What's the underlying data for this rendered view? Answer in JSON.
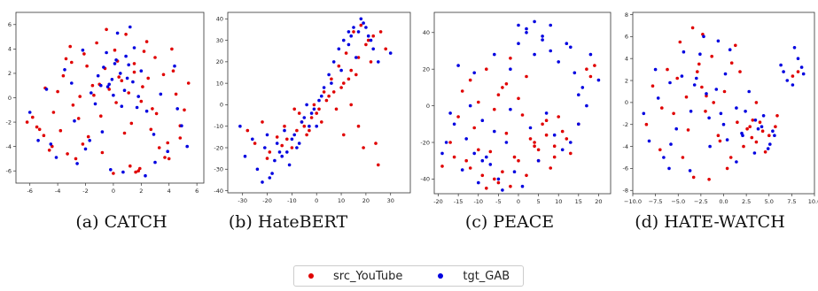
{
  "captions": [
    "(a) CATCH",
    "(b) HateBERT",
    "(c) PEACE",
    "(d) HATE-WATCH"
  ],
  "legend": [
    {
      "name": "src_YouTube",
      "color": "#e00000"
    },
    {
      "name": "tgt_GAB",
      "color": "#0000e0"
    }
  ],
  "chart_data": [
    {
      "type": "scatter",
      "title": "CATCH",
      "xlim": [
        -7,
        6.5
      ],
      "ylim": [
        -7,
        7
      ],
      "xticks": [
        -6,
        -4,
        -2,
        0,
        2,
        4,
        6
      ],
      "yticks": [
        -6,
        -4,
        -2,
        0,
        2,
        4,
        6
      ],
      "series": [
        {
          "name": "src_YouTube",
          "color": "#e00000",
          "x": [
            -6.2,
            -5.8,
            -5.5,
            -5.0,
            -4.6,
            -4.3,
            -4.0,
            -3.6,
            -3.3,
            -3.0,
            -2.7,
            -2.4,
            -2.1,
            -1.8,
            -1.5,
            -1.2,
            -0.9,
            -0.6,
            -0.3,
            0.0,
            0.3,
            0.6,
            0.9,
            1.2,
            1.5,
            1.8,
            2.1,
            2.4,
            2.7,
            3.0,
            3.3,
            3.6,
            3.9,
            4.2,
            4.5,
            4.8,
            5.1,
            5.4,
            -3.8,
            -2.9,
            -1.9,
            -0.8,
            0.4,
            1.3,
            2.2,
            3.1,
            4.0,
            -4.9,
            -3.4,
            -2.2,
            -1.0,
            0.2,
            1.5,
            2.8,
            4.3,
            1.6,
            1.9,
            -0.5,
            0.8,
            -2.5,
            2.5,
            3.7,
            -3.1,
            -1.4,
            0.1,
            1.1,
            2.0,
            -4.4,
            4.8,
            -5.3
          ],
          "y": [
            -2.0,
            -1.6,
            -2.4,
            -3.1,
            -4.3,
            -1.2,
            0.5,
            1.8,
            -4.6,
            2.9,
            -5.0,
            0.1,
            3.6,
            -3.2,
            1.0,
            4.5,
            -1.5,
            2.4,
            0.7,
            -6.2,
            3.0,
            1.4,
            5.2,
            -5.6,
            2.1,
            -6.0,
            0.9,
            4.6,
            -2.6,
            3.3,
            -4.1,
            1.9,
            -3.7,
            4.0,
            0.3,
            -3.3,
            -1.0,
            1.2,
            -2.7,
            -0.6,
            2.6,
            -4.5,
            1.7,
            -2.1,
            3.8,
            -1.3,
            -5.0,
            0.8,
            3.2,
            -3.8,
            1.1,
            -0.4,
            2.8,
            -0.9,
            2.2,
            -6.1,
            -5.8,
            5.6,
            -2.9,
            -1.7,
            1.6,
            -4.9,
            4.2,
            0.2,
            3.9,
            0.4,
            -0.3,
            -4.0,
            -2.3,
            -2.6
          ]
        },
        {
          "name": "tgt_GAB",
          "color": "#0000e0",
          "x": [
            -6.0,
            -5.4,
            -4.8,
            -4.1,
            -3.5,
            -2.8,
            -2.2,
            -1.6,
            -1.1,
            -0.7,
            -0.4,
            -0.1,
            0.2,
            0.5,
            0.8,
            1.1,
            1.4,
            1.7,
            2.0,
            2.4,
            2.9,
            3.4,
            3.9,
            4.4,
            4.9,
            5.3,
            -1.3,
            -0.9,
            -0.5,
            0.0,
            0.6,
            1.0,
            1.5,
            -0.2,
            0.3,
            0.7,
            -0.8,
            1.2,
            -2.0,
            2.3,
            -3.0,
            3.0,
            -4.5,
            4.6,
            0.1,
            -0.3,
            0.9,
            1.8,
            -1.7,
            -2.6
          ],
          "y": [
            -1.2,
            -3.5,
            0.7,
            -4.9,
            2.3,
            -1.9,
            3.9,
            0.4,
            1.8,
            2.5,
            0.9,
            1.5,
            3.1,
            2.0,
            0.6,
            2.7,
            1.3,
            -0.8,
            2.2,
            -1.1,
            -3.0,
            0.3,
            -4.4,
            2.6,
            -2.3,
            -4.0,
            -0.5,
            1.0,
            3.7,
            0.2,
            -0.7,
            1.6,
            4.1,
            -5.9,
            5.3,
            -6.1,
            -2.8,
            5.8,
            -4.2,
            -6.4,
            1.2,
            -5.3,
            -3.8,
            -0.9,
            2.8,
            1.1,
            3.4,
            0.1,
            -3.5,
            -5.4
          ]
        }
      ]
    },
    {
      "type": "scatter",
      "title": "HateBERT",
      "xlim": [
        -36,
        38
      ],
      "ylim": [
        -41,
        43
      ],
      "xticks": [
        -30,
        -20,
        -10,
        0,
        10,
        20,
        30
      ],
      "yticks": [
        -40,
        -30,
        -20,
        -10,
        0,
        10,
        20,
        30,
        40
      ],
      "series": [
        {
          "name": "src_YouTube",
          "color": "#e00000",
          "x": [
            -28,
            -25,
            -22,
            -19,
            -16,
            -13,
            -10,
            -7,
            -4,
            -1,
            2,
            5,
            8,
            11,
            14,
            17,
            20,
            23,
            26,
            -20,
            -14,
            -8,
            -2,
            4,
            10,
            16,
            22,
            28,
            -12,
            -5,
            1,
            7,
            13,
            19,
            25,
            15,
            18,
            21,
            12,
            9,
            6,
            3,
            0,
            -3,
            -6,
            -9,
            17,
            24,
            14,
            11
          ],
          "y": [
            -12,
            -18,
            -8,
            -22,
            -15,
            -10,
            -20,
            -4,
            -14,
            0,
            -8,
            4,
            -2,
            10,
            16,
            22,
            28,
            32,
            34,
            -25,
            -19,
            -12,
            -6,
            2,
            8,
            14,
            20,
            26,
            -16,
            -10,
            -2,
            6,
            12,
            -20,
            -28,
            34,
            37,
            30,
            24,
            18,
            12,
            6,
            -4,
            -12,
            -8,
            -2,
            -10,
            -18,
            0,
            -14
          ]
        },
        {
          "name": "tgt_GAB",
          "color": "#0000e0",
          "x": [
            -31,
            -29,
            -26,
            -24,
            -21,
            -19,
            -17,
            -15,
            -13,
            -11,
            -9,
            -7,
            -5,
            -3,
            -1,
            1,
            3,
            5,
            7,
            9,
            11,
            13,
            15,
            17,
            19,
            21,
            23,
            25,
            30,
            -22,
            -18,
            -14,
            -10,
            -6,
            -2,
            2,
            6,
            10,
            14,
            18,
            -20,
            -16,
            -12,
            -8,
            -4,
            0,
            16,
            20,
            22,
            13
          ],
          "y": [
            -10,
            -24,
            -16,
            -30,
            -20,
            -34,
            -26,
            -22,
            -12,
            -28,
            -14,
            -18,
            -6,
            -10,
            -2,
            2,
            8,
            14,
            20,
            26,
            30,
            28,
            36,
            34,
            38,
            32,
            26,
            20,
            24,
            -36,
            -32,
            -24,
            -16,
            -8,
            -4,
            4,
            10,
            16,
            32,
            40,
            -14,
            -18,
            -22,
            -20,
            0,
            -10,
            22,
            36,
            30,
            34
          ]
        }
      ]
    },
    {
      "type": "scatter",
      "title": "PEACE",
      "xlim": [
        -21,
        23
      ],
      "ylim": [
        -48,
        51
      ],
      "xticks": [
        -20,
        -15,
        -10,
        -5,
        0,
        5,
        10,
        15,
        20
      ],
      "yticks": [
        -40,
        -20,
        0,
        20,
        40
      ],
      "series": [
        {
          "name": "src_YouTube",
          "color": "#e00000",
          "x": [
            -19,
            -17,
            -15,
            -13,
            -11,
            -9,
            -7,
            -5,
            -3,
            -1,
            1,
            3,
            5,
            7,
            9,
            11,
            13,
            15,
            -14,
            -12,
            -10,
            -8,
            -6,
            -4,
            -2,
            0,
            2,
            4,
            6,
            8,
            10,
            12,
            -8,
            -6,
            -4,
            -10,
            -12,
            5,
            7,
            9,
            17,
            18,
            19,
            -16,
            -2,
            0,
            2,
            4,
            -5,
            -3
          ],
          "y": [
            -33,
            -20,
            -6,
            -30,
            -12,
            -38,
            -25,
            -42,
            -15,
            -28,
            -5,
            -18,
            -30,
            -8,
            -22,
            -14,
            -26,
            -10,
            8,
            14,
            2,
            20,
            -2,
            10,
            26,
            4,
            16,
            -20,
            -10,
            -34,
            -6,
            -18,
            -45,
            -40,
            -36,
            -24,
            -34,
            -24,
            -16,
            -28,
            20,
            16,
            22,
            -28,
            -44,
            -30,
            -38,
            -22,
            6,
            12
          ]
        },
        {
          "name": "tgt_GAB",
          "color": "#0000e0",
          "x": [
            -18,
            -16,
            -14,
            -12,
            -10,
            -8,
            -6,
            -4,
            -2,
            0,
            2,
            4,
            6,
            8,
            10,
            12,
            14,
            16,
            18,
            20,
            -13,
            -11,
            -9,
            -7,
            -5,
            -3,
            -1,
            1,
            3,
            5,
            7,
            9,
            11,
            13,
            15,
            17,
            -15,
            -17,
            -19,
            0,
            2,
            4,
            6,
            -2,
            8,
            -6,
            -9,
            -11,
            13,
            15
          ],
          "y": [
            -20,
            -10,
            -35,
            0,
            -42,
            -28,
            -14,
            -46,
            -2,
            44,
            40,
            46,
            36,
            30,
            24,
            34,
            18,
            10,
            28,
            14,
            -18,
            -26,
            -8,
            -32,
            -40,
            -20,
            -36,
            -44,
            -12,
            -30,
            -4,
            -16,
            -24,
            -20,
            -10,
            0,
            22,
            -4,
            -26,
            34,
            42,
            28,
            38,
            20,
            44,
            28,
            -30,
            18,
            32,
            6
          ]
        }
      ]
    },
    {
      "type": "scatter",
      "title": "HATE-WATCH",
      "xlim": [
        -10,
        10
      ],
      "ylim": [
        -8.3,
        8.2
      ],
      "xticks": [
        -10.0,
        -7.5,
        -5.0,
        -2.5,
        0.0,
        2.5,
        5.0,
        7.5,
        10.0
      ],
      "xticklabels": [
        "−10.0",
        "−7.5",
        "−5.0",
        "−2.5",
        "0.0",
        "2.5",
        "5.0",
        "7.5",
        "10.0"
      ],
      "yticks": [
        -8,
        -6,
        -4,
        -2,
        0,
        2,
        4,
        6,
        8
      ],
      "series": [
        {
          "name": "src_YouTube",
          "color": "#e00000",
          "x": [
            -8.5,
            -7.8,
            -7.0,
            -6.2,
            -5.5,
            -4.8,
            -4.1,
            -3.4,
            -2.7,
            -2.0,
            -1.3,
            -0.6,
            0.1,
            0.8,
            1.5,
            2.2,
            2.9,
            3.6,
            4.3,
            5.0,
            5.7,
            -6.8,
            -5.1,
            -3.9,
            -2.3,
            -1.1,
            0.4,
            1.8,
            3.2,
            4.6,
            5.9,
            -2.9,
            -2.4,
            -1.9,
            -3.3,
            -1.6,
            2.6,
            3.1,
            4.0,
            3.6,
            -0.4,
            -4.5,
            0.9,
            1.3,
            7.6,
            8.2
          ],
          "y": [
            -2.0,
            1.5,
            -4.3,
            3.0,
            -1.0,
            5.5,
            0.5,
            6.8,
            3.5,
            -0.8,
            4.2,
            -3.0,
            1.0,
            -5.0,
            -1.8,
            -4.0,
            -2.2,
            -3.6,
            -2.6,
            -3.0,
            -2.2,
            -0.5,
            2.2,
            -2.5,
            6.2,
            0.0,
            -6.0,
            2.8,
            -1.6,
            -4.5,
            -1.2,
            2.8,
            1.4,
            0.6,
            -6.8,
            -7.0,
            -2.4,
            -3.2,
            -1.8,
            0.0,
            -3.5,
            -5.0,
            3.6,
            5.2,
            2.4,
            2.8
          ]
        },
        {
          "name": "tgt_GAB",
          "color": "#0000e0",
          "x": [
            -8.8,
            -8.2,
            -7.5,
            -6.6,
            -5.9,
            -5.2,
            -4.4,
            -3.7,
            -3.0,
            -2.2,
            -1.5,
            -0.8,
            0.0,
            0.7,
            1.4,
            2.1,
            2.8,
            3.5,
            4.2,
            4.9,
            5.6,
            6.3,
            7.0,
            7.6,
            8.2,
            8.8,
            -4.6,
            -3.6,
            -2.6,
            -1.6,
            -0.6,
            0.4,
            1.4,
            2.4,
            3.4,
            4.4,
            5.4,
            6.6,
            7.8,
            8.6,
            -7.2,
            -5.8,
            -3.2,
            -1.9,
            0.2,
            2.0,
            3.8,
            5.1,
            -6.0,
            -0.3
          ],
          "y": [
            -1.0,
            -3.5,
            3.0,
            -5.0,
            1.8,
            -2.4,
            4.6,
            -6.2,
            2.2,
            6.0,
            -4.0,
            1.2,
            -2.0,
            4.8,
            -0.5,
            -3.0,
            1.0,
            -1.6,
            -2.2,
            -4.2,
            -3.0,
            3.4,
            2.0,
            1.6,
            4.0,
            2.6,
            2.4,
            -0.8,
            4.4,
            -1.4,
            5.6,
            -3.4,
            -5.4,
            -0.8,
            -4.6,
            -1.2,
            -2.6,
            2.8,
            5.0,
            3.2,
            0.4,
            -3.8,
            1.6,
            0.8,
            2.6,
            -2.8,
            -2.4,
            -3.8,
            -6.0,
            -1.0
          ]
        }
      ]
    }
  ]
}
